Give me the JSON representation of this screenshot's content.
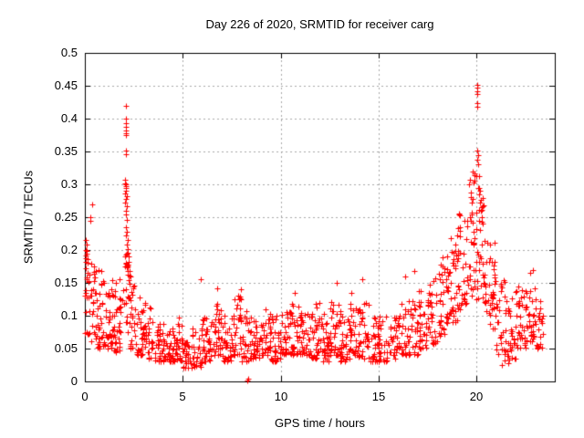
{
  "chart_data": {
    "type": "scatter",
    "title": "Day 226 of 2020, SRMTID for receiver carg",
    "xlabel": "GPS time / hours",
    "ylabel": "SRMTID / TECUs",
    "xlim": [
      0,
      24
    ],
    "ylim": [
      0,
      0.5
    ],
    "xticks": [
      0,
      5,
      10,
      15,
      20
    ],
    "xtick_labels": [
      "0",
      "5",
      "10",
      "15",
      "20"
    ],
    "yticks": [
      0,
      0.05,
      0.1,
      0.15,
      0.2,
      0.25,
      0.3,
      0.35,
      0.4,
      0.45,
      0.5
    ],
    "ytick_labels": [
      "0",
      "0.05",
      "0.1",
      "0.15",
      "0.2",
      "0.25",
      "0.3",
      "0.35",
      "0.4",
      "0.45",
      "0.5"
    ],
    "grid": true,
    "legend": "none",
    "marker": "plus",
    "marker_color": "#ff0000",
    "grid_color": "#a8a8a8",
    "border_color": "#000000",
    "series": [
      {
        "name": "SRMTID",
        "seed": 42,
        "bands_format": "[x_start, x_end, n_points, y_min, y_max, skew_exponent(optional, default 1.6)]",
        "bands": [
          [
            0.0,
            0.3,
            22,
            0.07,
            0.22,
            1.2
          ],
          [
            0.3,
            0.6,
            22,
            0.06,
            0.18,
            1.3
          ],
          [
            0.6,
            1.0,
            30,
            0.05,
            0.17
          ],
          [
            1.0,
            1.5,
            34,
            0.05,
            0.155
          ],
          [
            1.5,
            2.0,
            34,
            0.045,
            0.16
          ],
          [
            2.0,
            2.3,
            26,
            0.06,
            0.2,
            1.2
          ],
          [
            2.3,
            2.6,
            22,
            0.05,
            0.16
          ],
          [
            2.6,
            3.0,
            28,
            0.04,
            0.135
          ],
          [
            3.0,
            3.5,
            34,
            0.035,
            0.12
          ],
          [
            3.5,
            4.0,
            34,
            0.03,
            0.09
          ],
          [
            4.0,
            4.5,
            34,
            0.03,
            0.085
          ],
          [
            4.5,
            5.0,
            34,
            0.03,
            0.1
          ],
          [
            5.0,
            5.5,
            30,
            0.02,
            0.06
          ],
          [
            5.5,
            6.0,
            32,
            0.022,
            0.085
          ],
          [
            6.0,
            6.5,
            34,
            0.03,
            0.1
          ],
          [
            6.5,
            7.0,
            34,
            0.04,
            0.12
          ],
          [
            7.0,
            7.5,
            32,
            0.03,
            0.1
          ],
          [
            7.5,
            8.0,
            34,
            0.04,
            0.13
          ],
          [
            8.0,
            8.5,
            32,
            0.03,
            0.11
          ],
          [
            8.5,
            9.0,
            30,
            0.035,
            0.1
          ],
          [
            9.0,
            9.5,
            34,
            0.04,
            0.11
          ],
          [
            9.5,
            10.0,
            32,
            0.03,
            0.1
          ],
          [
            10.0,
            10.5,
            34,
            0.04,
            0.11
          ],
          [
            10.5,
            11.0,
            34,
            0.04,
            0.12
          ],
          [
            11.0,
            11.5,
            32,
            0.04,
            0.11
          ],
          [
            11.5,
            12.0,
            34,
            0.035,
            0.12
          ],
          [
            12.0,
            12.5,
            32,
            0.03,
            0.11
          ],
          [
            12.5,
            13.0,
            34,
            0.04,
            0.125
          ],
          [
            13.0,
            13.5,
            32,
            0.03,
            0.11
          ],
          [
            13.5,
            14.0,
            34,
            0.04,
            0.12
          ],
          [
            14.0,
            14.5,
            32,
            0.035,
            0.12
          ],
          [
            14.5,
            15.0,
            32,
            0.03,
            0.1
          ],
          [
            15.0,
            15.5,
            28,
            0.03,
            0.1
          ],
          [
            15.5,
            16.0,
            28,
            0.035,
            0.1
          ],
          [
            16.0,
            16.5,
            30,
            0.04,
            0.12
          ],
          [
            16.5,
            17.0,
            30,
            0.04,
            0.13
          ],
          [
            17.0,
            17.5,
            30,
            0.05,
            0.14
          ],
          [
            17.5,
            18.0,
            32,
            0.055,
            0.16,
            1.4
          ],
          [
            18.0,
            18.5,
            34,
            0.07,
            0.19,
            1.4
          ],
          [
            18.5,
            19.0,
            36,
            0.09,
            0.22,
            1.4
          ],
          [
            19.0,
            19.5,
            36,
            0.11,
            0.26,
            1.3
          ],
          [
            19.5,
            20.0,
            38,
            0.13,
            0.32,
            1.3
          ],
          [
            20.0,
            20.5,
            38,
            0.12,
            0.3,
            1.3
          ],
          [
            20.5,
            21.0,
            34,
            0.08,
            0.22,
            1.4
          ],
          [
            21.0,
            21.5,
            30,
            0.04,
            0.16
          ],
          [
            21.5,
            22.0,
            30,
            0.03,
            0.14
          ],
          [
            22.0,
            22.5,
            32,
            0.05,
            0.15
          ],
          [
            22.5,
            23.0,
            32,
            0.06,
            0.15
          ],
          [
            23.0,
            23.4,
            24,
            0.05,
            0.13
          ]
        ],
        "outliers": [
          [
            2.08,
            0.42
          ],
          [
            2.1,
            0.4
          ],
          [
            2.09,
            0.393
          ],
          [
            2.11,
            0.388
          ],
          [
            2.1,
            0.382
          ],
          [
            2.08,
            0.378
          ],
          [
            2.12,
            0.375
          ],
          [
            2.09,
            0.352
          ],
          [
            2.11,
            0.346
          ],
          [
            2.05,
            0.307
          ],
          [
            2.07,
            0.302
          ],
          [
            2.09,
            0.3
          ],
          [
            2.1,
            0.297
          ],
          [
            2.12,
            0.294
          ],
          [
            2.08,
            0.29
          ],
          [
            2.06,
            0.286
          ],
          [
            2.13,
            0.282
          ],
          [
            2.1,
            0.278
          ],
          [
            2.07,
            0.272
          ],
          [
            2.14,
            0.266
          ],
          [
            2.09,
            0.26
          ],
          [
            2.11,
            0.254
          ],
          [
            2.15,
            0.246
          ],
          [
            2.12,
            0.235
          ],
          [
            2.16,
            0.228
          ],
          [
            2.1,
            0.222
          ],
          [
            2.18,
            0.215
          ],
          [
            2.13,
            0.208
          ],
          [
            2.2,
            0.202
          ],
          [
            2.17,
            0.196
          ],
          [
            2.22,
            0.19
          ],
          [
            2.25,
            0.182
          ],
          [
            2.19,
            0.175
          ],
          [
            2.28,
            0.168
          ],
          [
            2.32,
            0.16
          ],
          [
            0.35,
            0.27
          ],
          [
            0.28,
            0.25
          ],
          [
            0.3,
            0.245
          ],
          [
            0.05,
            0.215
          ],
          [
            0.08,
            0.208
          ],
          [
            0.04,
            0.2
          ],
          [
            0.1,
            0.195
          ],
          [
            0.06,
            0.188
          ],
          [
            0.12,
            0.18
          ],
          [
            0.03,
            0.172
          ],
          [
            0.15,
            0.165
          ],
          [
            0.45,
            0.175
          ],
          [
            0.55,
            0.168
          ],
          [
            8.28,
            0.002
          ],
          [
            8.33,
            0.004
          ],
          [
            5.92,
            0.155
          ],
          [
            6.78,
            0.142
          ],
          [
            7.95,
            0.14
          ],
          [
            10.7,
            0.135
          ],
          [
            12.85,
            0.15
          ],
          [
            13.6,
            0.135
          ],
          [
            14.15,
            0.155
          ],
          [
            16.35,
            0.16
          ],
          [
            16.8,
            0.168
          ],
          [
            20.02,
            0.452
          ],
          [
            20.04,
            0.447
          ],
          [
            20.03,
            0.442
          ],
          [
            20.05,
            0.438
          ],
          [
            20.02,
            0.424
          ],
          [
            20.06,
            0.418
          ],
          [
            20.04,
            0.352
          ],
          [
            20.07,
            0.345
          ],
          [
            20.03,
            0.338
          ],
          [
            19.62,
            0.3
          ],
          [
            19.7,
            0.288
          ],
          [
            19.78,
            0.272
          ],
          [
            19.9,
            0.305
          ],
          [
            20.1,
            0.33
          ],
          [
            20.12,
            0.312
          ],
          [
            20.08,
            0.295
          ],
          [
            20.15,
            0.285
          ],
          [
            20.18,
            0.272
          ],
          [
            20.22,
            0.26
          ],
          [
            20.26,
            0.25
          ],
          [
            20.3,
            0.24
          ],
          [
            21.3,
            0.025
          ],
          [
            21.45,
            0.032
          ],
          [
            21.6,
            0.028
          ],
          [
            22.75,
            0.165
          ],
          [
            22.9,
            0.17
          ]
        ]
      }
    ]
  }
}
